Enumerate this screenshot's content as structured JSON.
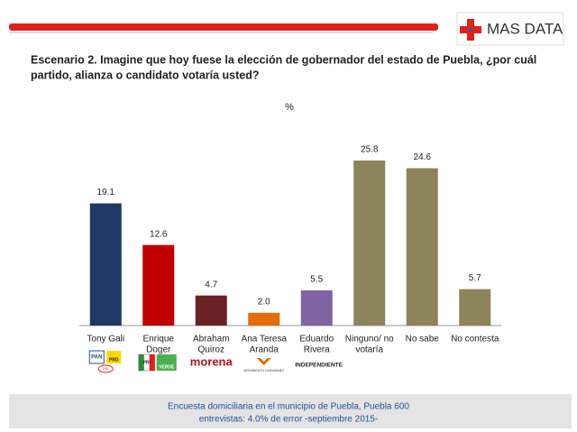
{
  "brand": "MAS DATA",
  "chart_data": {
    "type": "bar",
    "title": [
      "Escenario 2. Imagine que hoy fuese la elección de gobernador del estado de Puebla, ¿por cuál",
      "partido, alianza o candidato votaría usted?"
    ],
    "subtitle": "%",
    "categories": [
      [
        "Tony Gali"
      ],
      [
        "Enrique",
        "Doger"
      ],
      [
        "Abraham",
        "Quiroz"
      ],
      [
        "Ana Teresa",
        "Aranda"
      ],
      [
        "Eduardo",
        "Rivera"
      ],
      [
        "Ninguno/ no",
        "votaría"
      ],
      [
        "No sabe"
      ],
      [
        "No contesta"
      ]
    ],
    "values": [
      19.1,
      12.6,
      4.7,
      2.0,
      5.5,
      25.8,
      24.6,
      5.7
    ],
    "value_labels": [
      "19.1",
      "12.6",
      "4.7",
      "2.0",
      "5.5",
      "25.8",
      "24.6",
      "5.7"
    ],
    "colors": [
      "#1f3864",
      "#c00000",
      "#6b2226",
      "#e46c0a",
      "#8064a2",
      "#8c845a",
      "#8c845a",
      "#8c845a"
    ],
    "logo_labels": [
      [
        "PAN",
        "PRD",
        "PSI"
      ],
      [
        "PRI",
        "VERDE"
      ],
      [
        "morena"
      ],
      [
        "MOVIMIENTO CIUDADANO"
      ],
      [
        "INDEPENDIENTE"
      ]
    ]
  },
  "footer": [
    "Encuesta domiciliaria en el municipio de Puebla, Puebla 600",
    "entrevistas: 4.0% de error -septiembre 2015-"
  ]
}
